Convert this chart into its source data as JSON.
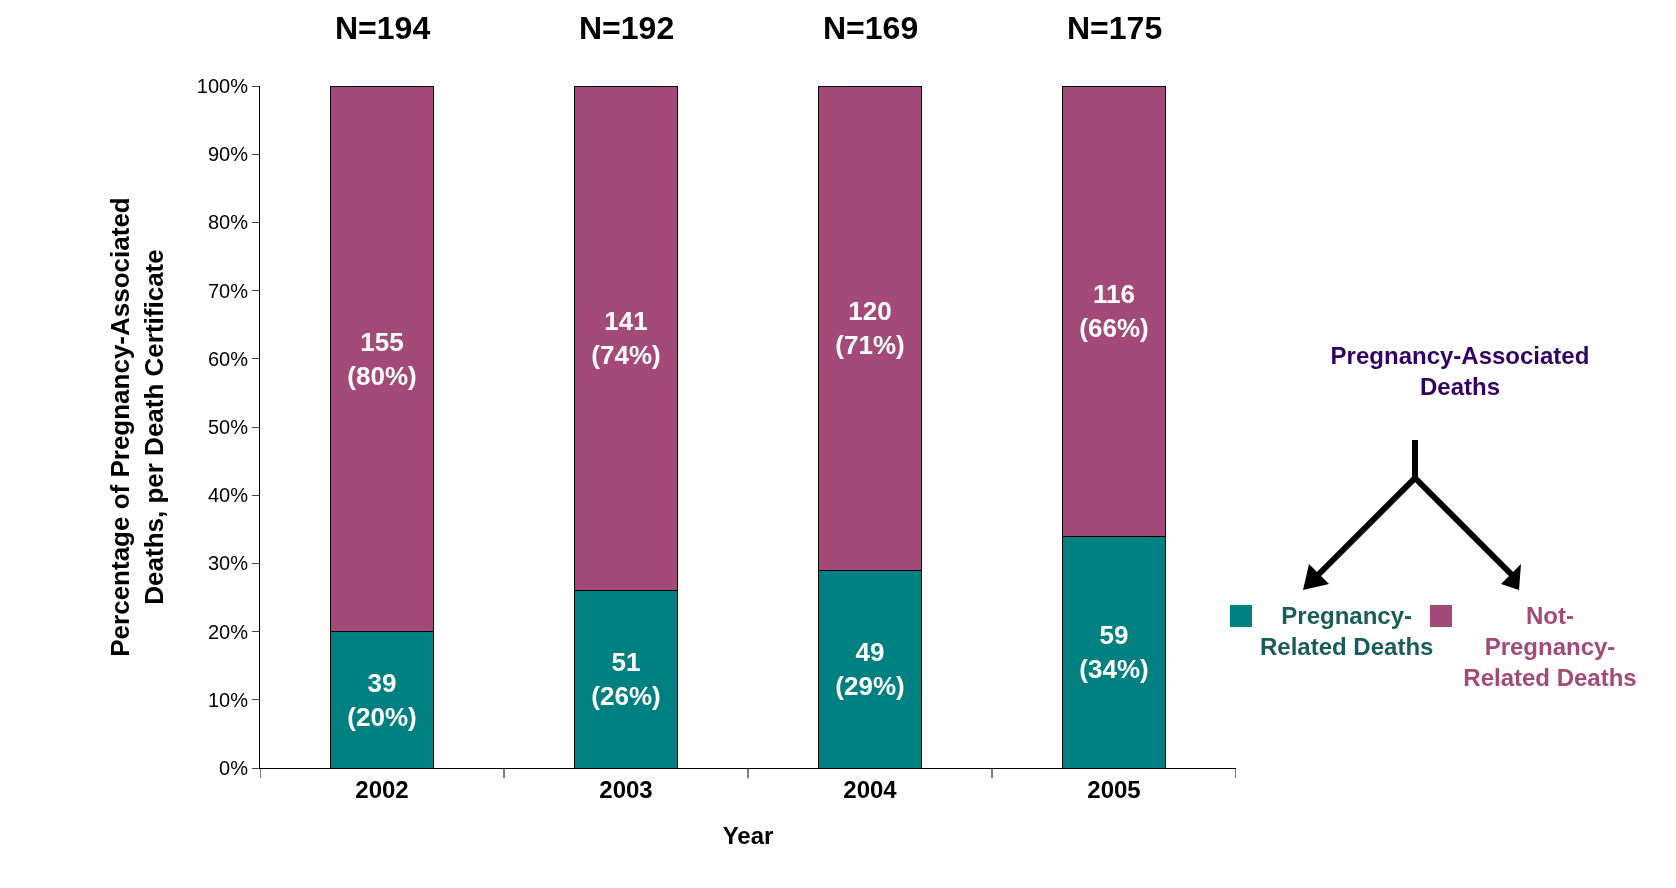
{
  "chart_data": {
    "type": "bar",
    "stacked": true,
    "xlabel": "Year",
    "ylabel": "Percentage of Pregnancy-Associated\nDeaths, per Death Certificate",
    "legend_title": "Pregnancy-Associated Deaths",
    "legend": "right",
    "grid": false,
    "categories": [
      "2002",
      "2003",
      "2004",
      "2005"
    ],
    "ylim": [
      0,
      100
    ],
    "yticks": [
      {
        "value": 0,
        "label": "0%"
      },
      {
        "value": 10,
        "label": "10%"
      },
      {
        "value": 20,
        "label": "20%"
      },
      {
        "value": 30,
        "label": "30%"
      },
      {
        "value": 40,
        "label": "40%"
      },
      {
        "value": 50,
        "label": "50%"
      },
      {
        "value": 60,
        "label": "60%"
      },
      {
        "value": 70,
        "label": "70%"
      },
      {
        "value": 80,
        "label": "80%"
      },
      {
        "value": 90,
        "label": "90%"
      },
      {
        "value": 100,
        "label": "100%"
      }
    ],
    "series": [
      {
        "name": "Pregnancy-Related Deaths",
        "color": "#008080",
        "values": [
          20,
          26,
          29,
          34
        ],
        "value_labels": [
          "39\n(20%)",
          "51\n(26%)",
          "49\n(29%)",
          "59\n(34%)"
        ]
      },
      {
        "name": "Not-Pregnancy-Related Deaths",
        "color": "#a34a78",
        "values": [
          80,
          74,
          71,
          66
        ],
        "value_labels": [
          "155\n(80%)",
          "141\n(74%)",
          "120\n(71%)",
          "116\n(66%)"
        ]
      }
    ],
    "annotations": [
      {
        "text": "N=194",
        "x": "2002",
        "y": 100
      },
      {
        "text": "N=192",
        "x": "2003",
        "y": 100
      },
      {
        "text": "N=169",
        "x": "2004",
        "y": 100
      },
      {
        "text": "N=175",
        "x": "2005",
        "y": 100
      }
    ]
  }
}
